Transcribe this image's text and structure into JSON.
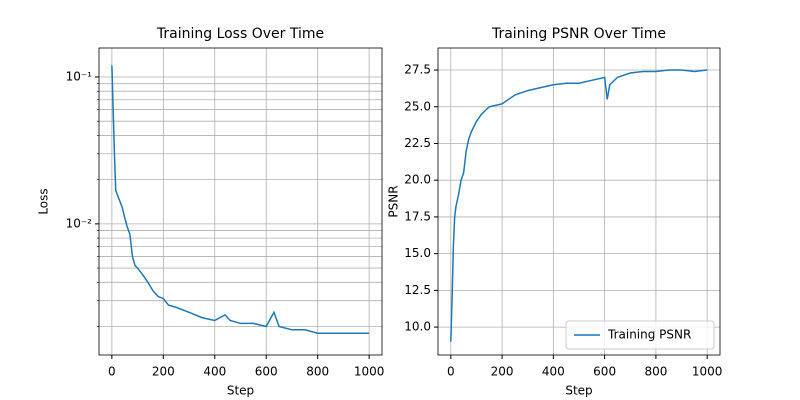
{
  "chart_data": [
    {
      "type": "line",
      "title": "Training Loss Over Time",
      "xlabel": "Step",
      "ylabel": "Loss",
      "log_y": true,
      "grid": true,
      "xlim": [
        -50,
        1050
      ],
      "ylim": [
        0.00128,
        0.1575
      ],
      "xticks": [
        0,
        200,
        400,
        600,
        800,
        1000
      ],
      "yticks": [
        {
          "value": 0.01,
          "label": "10⁻²"
        },
        {
          "value": 0.1,
          "label": "10⁻¹"
        }
      ],
      "minor_yticks": [
        0.002,
        0.003,
        0.004,
        0.005,
        0.006,
        0.007,
        0.008,
        0.009,
        0.02,
        0.03,
        0.04,
        0.05,
        0.06,
        0.07,
        0.08,
        0.09
      ],
      "x": [
        0,
        5,
        10,
        15,
        20,
        40,
        50,
        60,
        70,
        80,
        90,
        100,
        120,
        140,
        160,
        180,
        200,
        220,
        250,
        300,
        350,
        400,
        440,
        460,
        500,
        550,
        600,
        630,
        650,
        700,
        750,
        800,
        850,
        900,
        950,
        1000
      ],
      "series": [
        {
          "name": "Training Loss",
          "color": "#1f77b4",
          "values": [
            0.12,
            0.06,
            0.03,
            0.017,
            0.016,
            0.013,
            0.011,
            0.0095,
            0.0085,
            0.006,
            0.0052,
            0.005,
            0.0045,
            0.004,
            0.0035,
            0.0032,
            0.0031,
            0.0028,
            0.0027,
            0.0025,
            0.0023,
            0.0022,
            0.0024,
            0.0022,
            0.0021,
            0.0021,
            0.002,
            0.0025,
            0.002,
            0.0019,
            0.0019,
            0.0018,
            0.0018,
            0.0018,
            0.0018,
            0.0018
          ]
        }
      ]
    },
    {
      "type": "line",
      "title": "Training PSNR Over Time",
      "xlabel": "Step",
      "ylabel": "PSNR",
      "grid": true,
      "legend": "lower right",
      "xlim": [
        -50,
        1050
      ],
      "ylim": [
        8.1,
        29.0
      ],
      "xticks": [
        0,
        200,
        400,
        600,
        800,
        1000
      ],
      "yticks": [
        {
          "value": 10,
          "label": "10.0"
        },
        12.5,
        {
          "value": 15,
          "label": "15.0"
        },
        17.5,
        {
          "value": 20,
          "label": "20.0"
        },
        22.5,
        {
          "value": 25,
          "label": "25.0"
        },
        27.5
      ],
      "x": [
        0,
        5,
        10,
        15,
        20,
        30,
        40,
        50,
        60,
        70,
        80,
        100,
        120,
        150,
        200,
        250,
        300,
        350,
        400,
        450,
        500,
        550,
        600,
        610,
        620,
        650,
        700,
        750,
        800,
        850,
        900,
        950,
        1000
      ],
      "series": [
        {
          "name": "Training PSNR",
          "color": "#1f77b4",
          "values": [
            9,
            12,
            15.5,
            17.5,
            18.2,
            19,
            20,
            20.5,
            22,
            22.8,
            23.3,
            24,
            24.5,
            25,
            25.2,
            25.8,
            26.1,
            26.3,
            26.5,
            26.6,
            26.6,
            26.8,
            27,
            25.5,
            26.5,
            27,
            27.3,
            27.4,
            27.4,
            27.5,
            27.5,
            27.4,
            27.5
          ]
        }
      ]
    }
  ]
}
